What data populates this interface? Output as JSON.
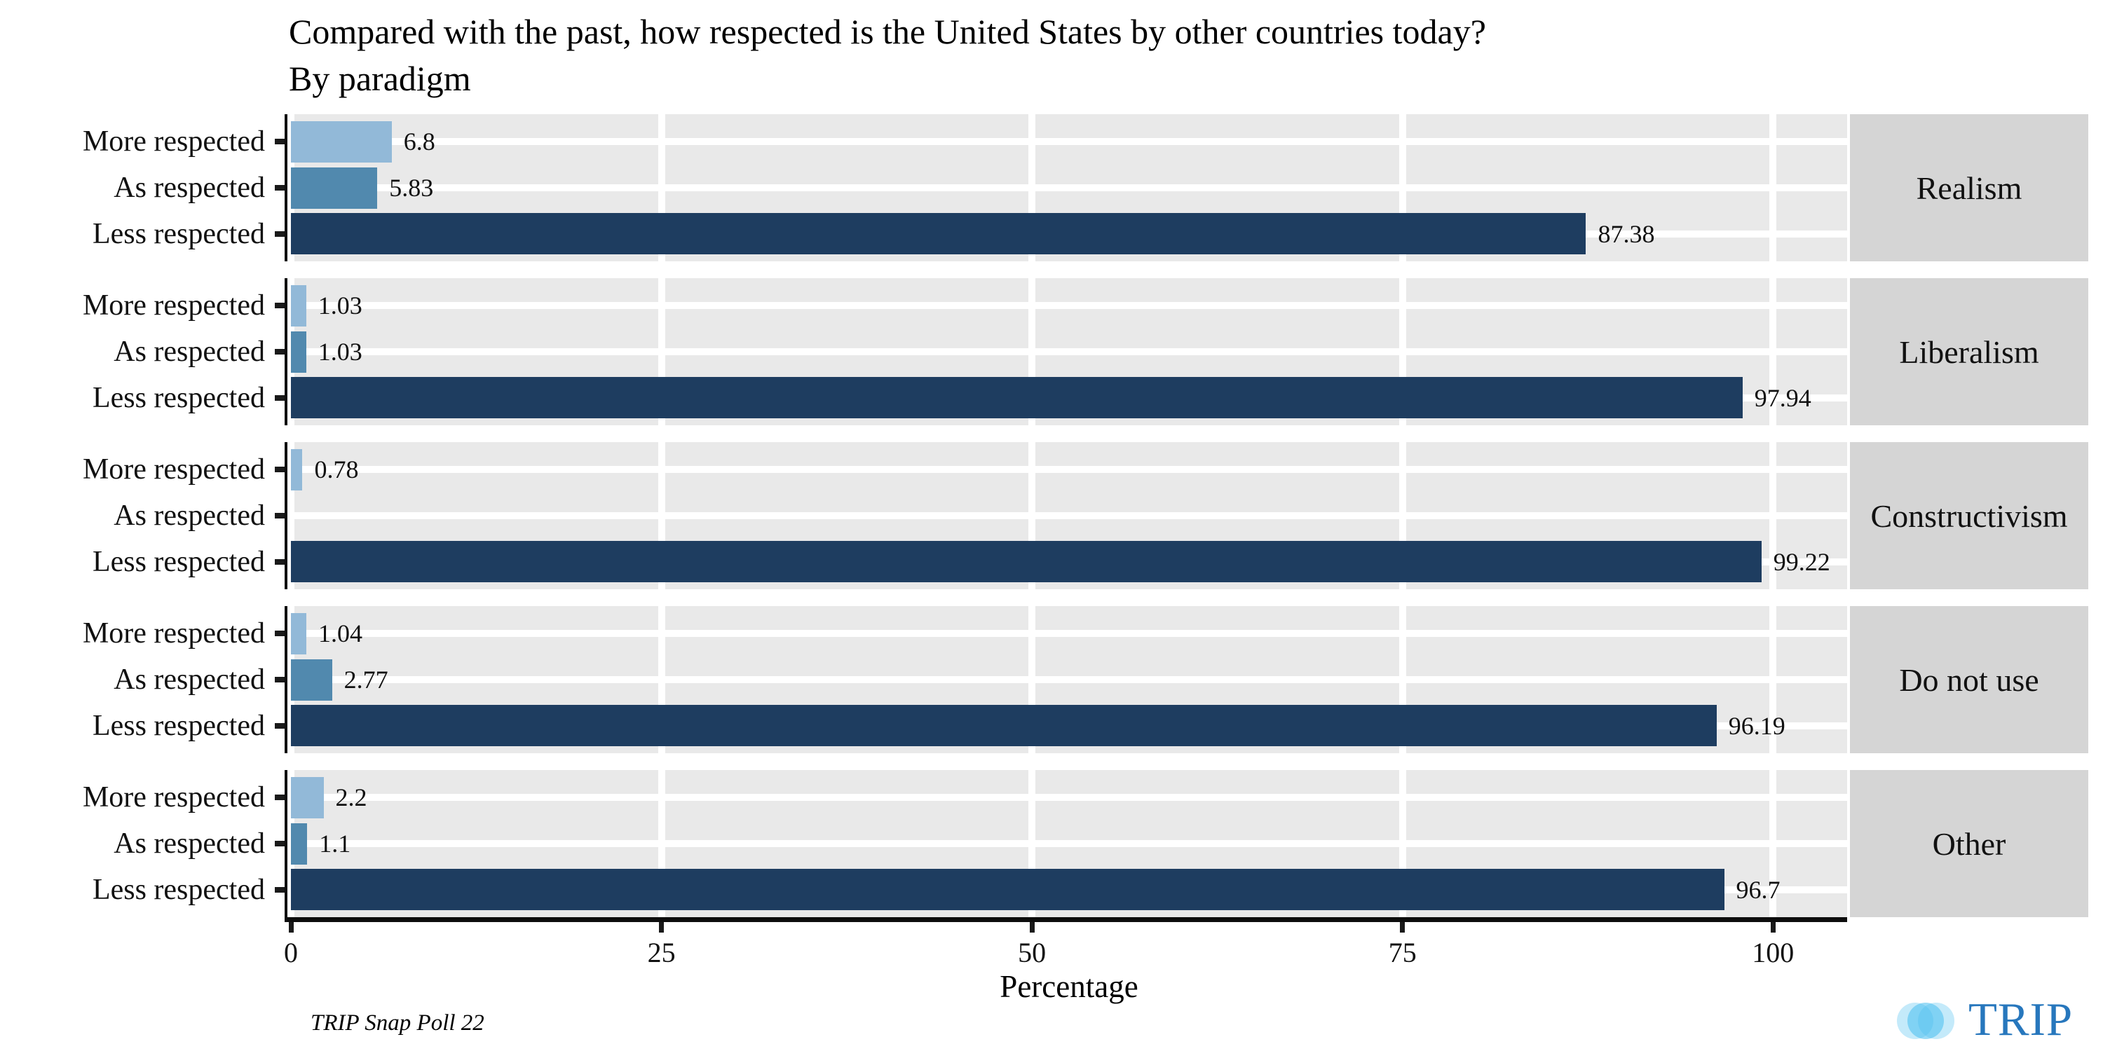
{
  "chart_data": {
    "type": "bar",
    "orientation": "horizontal",
    "title": "Compared with the past, how respected is the United States by other countries today?",
    "subtitle": "By paradigm",
    "xlabel": "Percentage",
    "caption": "TRIP Snap Poll 22",
    "categories": [
      "More respected",
      "As respected",
      "Less respected"
    ],
    "facets": [
      {
        "name": "Realism",
        "values": [
          6.8,
          5.83,
          87.38
        ],
        "labels": [
          "6.8",
          "5.83",
          "87.38"
        ]
      },
      {
        "name": "Liberalism",
        "values": [
          1.03,
          1.03,
          97.94
        ],
        "labels": [
          "1.03",
          "1.03",
          "97.94"
        ]
      },
      {
        "name": "Constructivism",
        "values": [
          0.78,
          0,
          99.22
        ],
        "labels": [
          "0.78",
          "",
          "99.22"
        ]
      },
      {
        "name": "Do not use",
        "values": [
          1.04,
          2.77,
          96.19
        ],
        "labels": [
          "1.04",
          "2.77",
          "96.19"
        ]
      },
      {
        "name": "Other",
        "values": [
          2.2,
          1.1,
          96.7
        ],
        "labels": [
          "2.2",
          "1.1",
          "96.7"
        ]
      }
    ],
    "x_ticks": [
      0,
      25,
      50,
      75,
      100
    ],
    "xlim": [
      0,
      105
    ],
    "grid": "white major gridlines on gray panels",
    "legend": "none",
    "bar_colors": [
      "#92b9d8",
      "#5189ae",
      "#1e3d60"
    ],
    "panel_background": "#e9e9e9",
    "strip_background": "#d5d5d5",
    "axis_color": "#0d0d0d"
  },
  "logo": {
    "text": "TRIP",
    "text_color": "#2777bd",
    "mark": "three-overlapping-light-blue-circles",
    "mark_color": "#49bdee"
  }
}
